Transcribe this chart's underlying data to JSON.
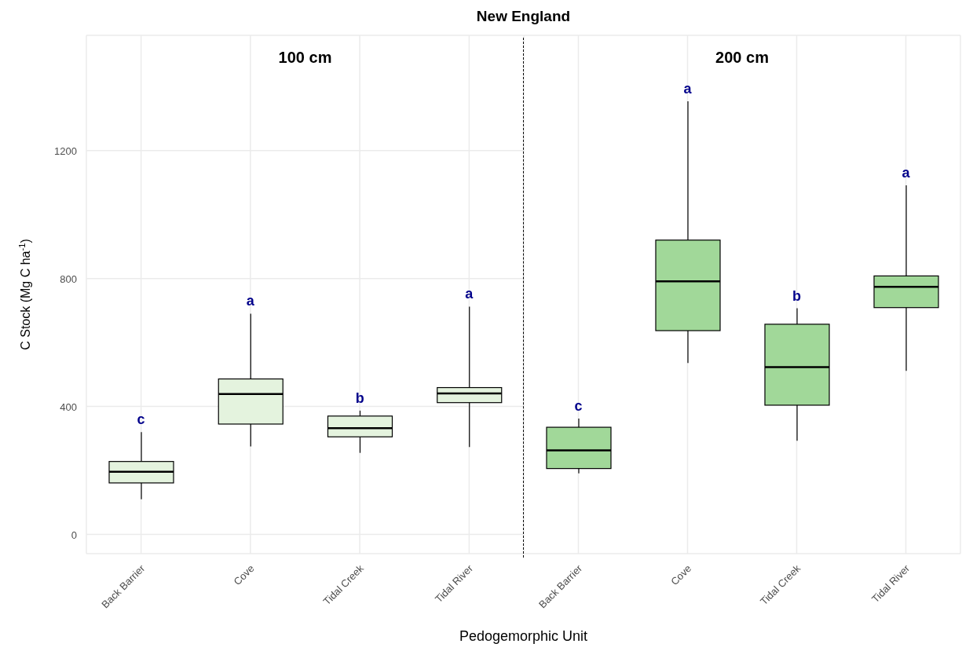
{
  "chart_data": [
    {
      "type": "box",
      "title": "New England",
      "subtitle": "100 cm",
      "xlabel": "Pedogemorphic Unit",
      "ylabel": "C Stock (Mg C ha$^{-1}$)",
      "categories": [
        "Back Barrier",
        "Cove",
        "Tidal Creek",
        "Tidal River"
      ],
      "series": [
        {
          "color": "#e4f3de",
          "boxes": [
            {
              "low": 110,
              "q1": 161,
              "median": 196,
              "q3": 228,
              "high": 320
            },
            {
              "low": 275,
              "q1": 345,
              "median": 439,
              "q3": 486,
              "high": 690
            },
            {
              "low": 255,
              "q1": 305,
              "median": 332,
              "q3": 370,
              "high": 387
            },
            {
              "low": 273,
              "q1": 412,
              "median": 441,
              "q3": 459,
              "high": 712
            }
          ]
        }
      ],
      "annotations": [
        "c",
        "a",
        "b",
        "a"
      ],
      "ylim": [
        -60,
        1560
      ],
      "yticks": [
        0,
        400,
        800,
        1200
      ],
      "grid": true
    },
    {
      "type": "box",
      "subtitle": "200 cm",
      "categories": [
        "Back Barrier",
        "Cove",
        "Tidal Creek",
        "Tidal River"
      ],
      "series": [
        {
          "color": "#a1d899",
          "boxes": [
            {
              "low": 191,
              "q1": 206,
              "median": 263,
              "q3": 335,
              "high": 362
            },
            {
              "low": 536,
              "q1": 637,
              "median": 791,
              "q3": 920,
              "high": 1354
            },
            {
              "low": 293,
              "q1": 404,
              "median": 523,
              "q3": 657,
              "high": 707
            },
            {
              "low": 511,
              "q1": 709,
              "median": 774,
              "q3": 808,
              "high": 1091
            }
          ]
        }
      ],
      "annotations": [
        "c",
        "a",
        "b",
        "a"
      ],
      "ylim": [
        -60,
        1560
      ],
      "yticks": [
        0,
        400,
        800,
        1200
      ],
      "grid": true,
      "tick_labels": "x"
    }
  ]
}
